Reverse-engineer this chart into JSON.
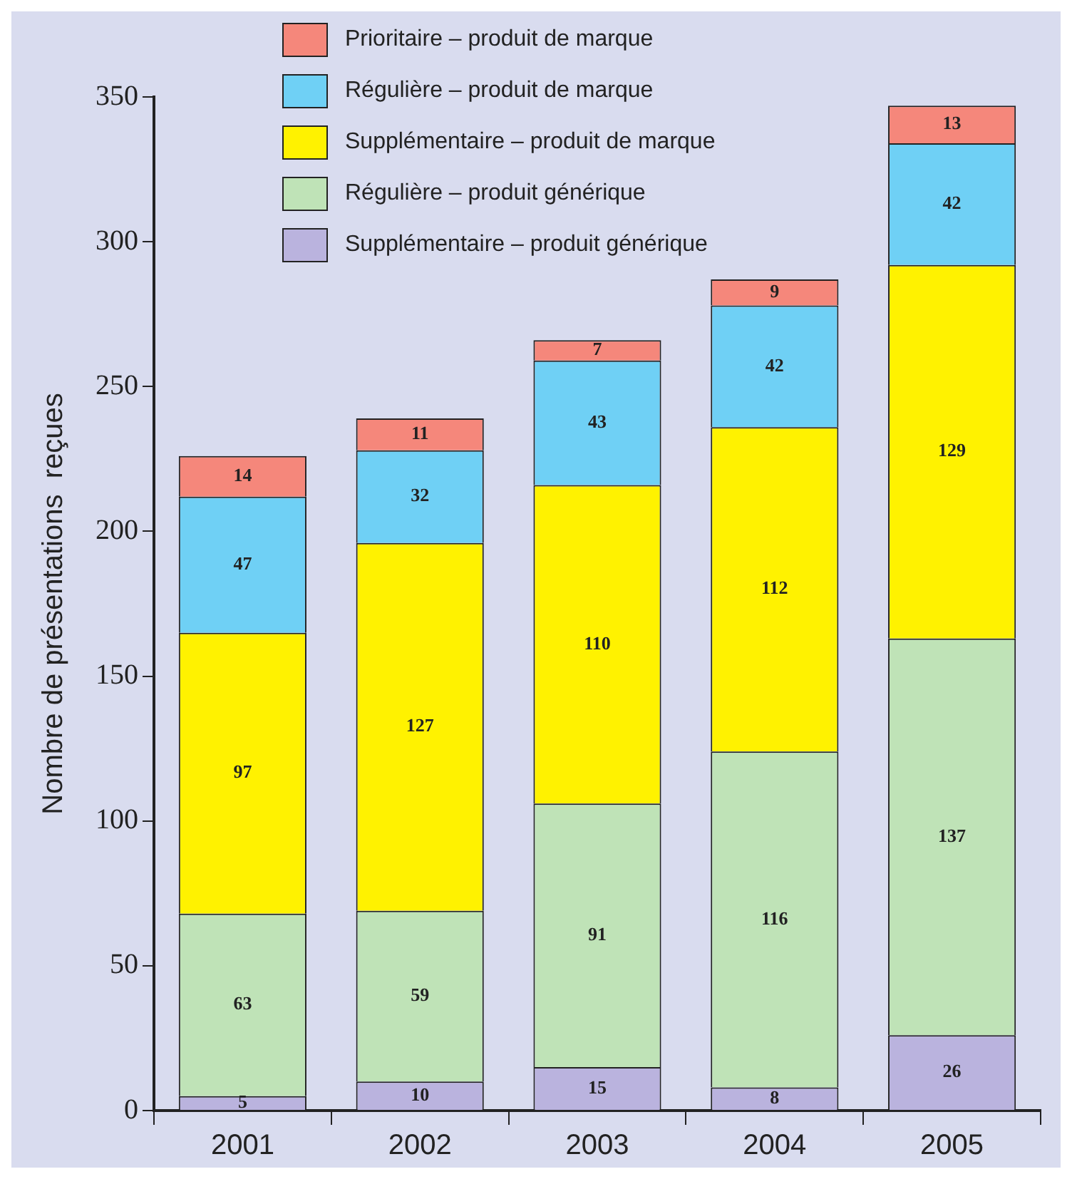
{
  "chart_data": {
    "type": "bar",
    "ylabel": "Nombre de présentations  reçues",
    "categories": [
      "2001",
      "2002",
      "2003",
      "2004",
      "2005"
    ],
    "stacked": true,
    "ylim": [
      0,
      350
    ],
    "yticks": [
      0,
      50,
      100,
      150,
      200,
      250,
      300,
      350
    ],
    "grid": false,
    "legend": "top left",
    "data_labels": true,
    "series": [
      {
        "name": "Supplémentaire – produit générique",
        "color": "#bab3de",
        "values": [
          5,
          10,
          15,
          8,
          26
        ]
      },
      {
        "name": "Régulière – produit générique",
        "color": "#bfe3b7",
        "values": [
          63,
          59,
          91,
          116,
          137
        ]
      },
      {
        "name": "Supplémentaire – produit de marque",
        "color": "#fff200",
        "values": [
          97,
          127,
          110,
          112,
          129
        ]
      },
      {
        "name": "Régulière – produit de marque",
        "color": "#6fd0f5",
        "values": [
          47,
          32,
          43,
          42,
          42
        ]
      },
      {
        "name": "Prioritaire – produit de marque",
        "color": "#f5877b",
        "values": [
          14,
          11,
          7,
          9,
          13
        ]
      }
    ]
  }
}
